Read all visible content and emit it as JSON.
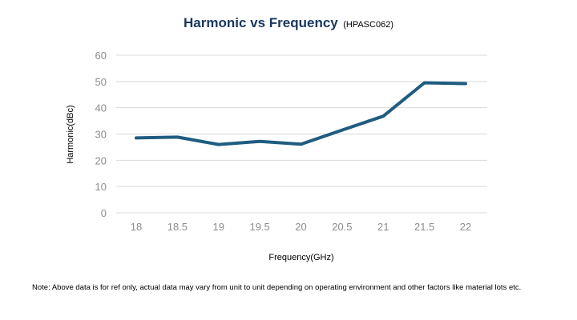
{
  "chart_data": {
    "type": "line",
    "title": "Harmonic vs Frequency",
    "subtitle": "(HPASC062)",
    "xlabel": "Frequency(GHz)",
    "ylabel": "Harmonic(dBc)",
    "categories": [
      "18",
      "18.5",
      "19",
      "19.5",
      "20",
      "20.5",
      "21",
      "21.5",
      "22"
    ],
    "series": [
      {
        "values": [
          28.5,
          28.8,
          26.0,
          27.2,
          26.1,
          31.5,
          36.8,
          49.5,
          49.2
        ]
      }
    ],
    "ylim": [
      0,
      60
    ],
    "yticks": [
      "0",
      "10",
      "20",
      "30",
      "40",
      "50",
      "60"
    ],
    "grid": true,
    "legend": "none",
    "line_color": "#1f5c80"
  },
  "note": "Note: Above data is for ref only, actual data may vary from unit to unit depending on operating environment and other factors like material lots etc."
}
